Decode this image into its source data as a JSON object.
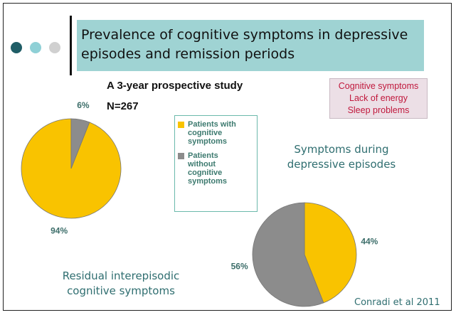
{
  "slide": {
    "title": "Prevalence of cognitive symptoms in depressive episodes and remission periods",
    "subtitle": "A 3-year prospective study",
    "sample": "N=267",
    "symptoms": [
      "Cognitive symptoms",
      "Lack of energy",
      "Sleep problems"
    ],
    "source": "Conradi et al 2011"
  },
  "legend": {
    "items": [
      {
        "label": "Patients with cognitive symptoms",
        "color": "#f9c300"
      },
      {
        "label": "Patients without cognitive symptoms",
        "color": "#8c8c8c"
      }
    ]
  },
  "chart_data": [
    {
      "type": "pie",
      "title": "Residual interepisodic cognitive symptoms",
      "values": [
        94,
        6
      ],
      "value_labels": [
        "94%",
        "6%"
      ]
    },
    {
      "type": "pie",
      "title": "Symptoms during depressive episodes",
      "values": [
        44,
        56
      ],
      "value_labels": [
        "44%",
        "56%"
      ]
    }
  ]
}
